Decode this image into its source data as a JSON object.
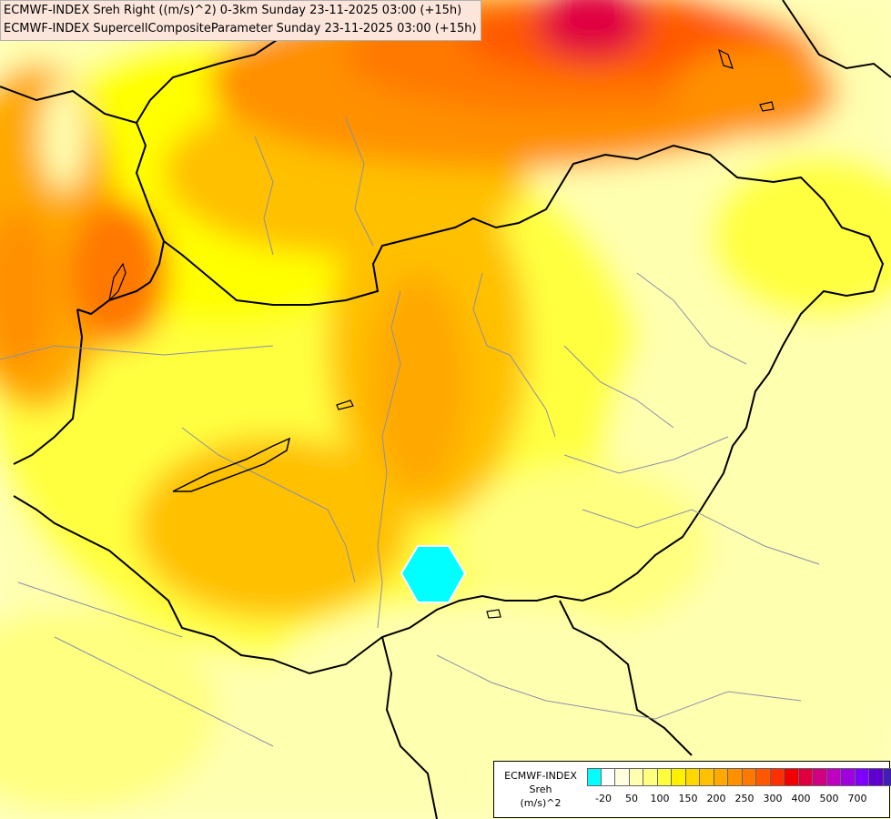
{
  "titles": {
    "line1": "ECMWF-INDEX Sreh Right ((m/s)^2) 0-3km Sunday 23-11-2025 03:00 (+15h)",
    "line2": "ECMWF-INDEX SupercellCompositeParameter Sunday 23-11-2025 03:00 (+15h)"
  },
  "legend": {
    "line1": "ECMWF-INDEX",
    "line2": "Sreh",
    "line3": "(m/s)^2",
    "colors": [
      "#00ffff",
      "#ffffff",
      "#ffffe0",
      "#ffffb0",
      "#ffff80",
      "#ffff40",
      "#fff000",
      "#ffd800",
      "#ffc000",
      "#ffa800",
      "#ff9000",
      "#ff7800",
      "#ff5800",
      "#ff3000",
      "#f00000",
      "#e00040",
      "#d00080",
      "#c000c0",
      "#a000e0",
      "#8000ff",
      "#6000d0",
      "#4020b0",
      "#000080"
    ],
    "ticks": [
      "-20",
      "50",
      "100",
      "150",
      "200",
      "250",
      "300",
      "400",
      "500",
      "700"
    ]
  },
  "marker": {
    "shape": "hexagon",
    "color": "#00ffff"
  }
}
